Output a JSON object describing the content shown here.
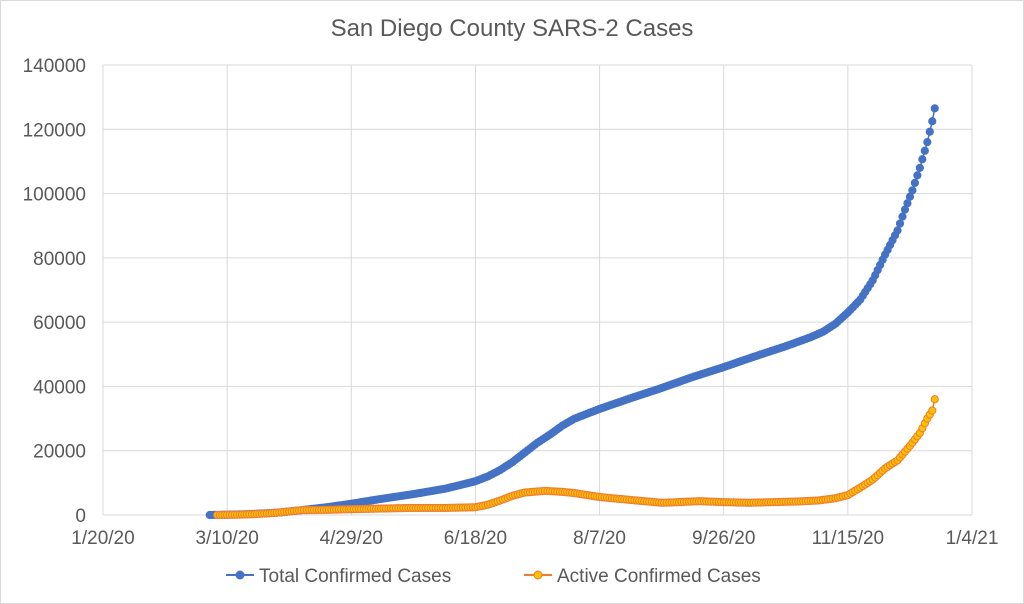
{
  "chart_data": {
    "type": "scatter",
    "title": "San Diego County SARS-2 Cases",
    "xlabel": "",
    "ylabel": "",
    "x_origin_date": "1/20/20",
    "x_units": "days since 1/20/20",
    "xlim": [
      0,
      350
    ],
    "ylim": [
      0,
      140000
    ],
    "x_ticks": [
      {
        "day": 0,
        "label": "1/20/20"
      },
      {
        "day": 50,
        "label": "3/10/20"
      },
      {
        "day": 100,
        "label": "4/29/20"
      },
      {
        "day": 150,
        "label": "6/18/20"
      },
      {
        "day": 200,
        "label": "8/7/20"
      },
      {
        "day": 250,
        "label": "9/26/20"
      },
      {
        "day": 300,
        "label": "11/15/20"
      },
      {
        "day": 350,
        "label": "1/4/21"
      }
    ],
    "y_ticks": [
      "0",
      "20000",
      "40000",
      "60000",
      "80000",
      "100000",
      "120000",
      "140000"
    ],
    "grid": true,
    "legend_position": "bottom",
    "series": [
      {
        "name": "Total Confirmed Cases",
        "color": "#4472C4",
        "marker_fill": "#4472C4",
        "points": [
          [
            43,
            0
          ],
          [
            50,
            100
          ],
          [
            60,
            300
          ],
          [
            70,
            700
          ],
          [
            80,
            1500
          ],
          [
            90,
            2400
          ],
          [
            100,
            3500
          ],
          [
            112,
            5000
          ],
          [
            125,
            6500
          ],
          [
            138,
            8200
          ],
          [
            150,
            10500
          ],
          [
            155,
            12000
          ],
          [
            160,
            14000
          ],
          [
            165,
            16500
          ],
          [
            170,
            19500
          ],
          [
            175,
            22500
          ],
          [
            180,
            25000
          ],
          [
            185,
            27800
          ],
          [
            190,
            30000
          ],
          [
            200,
            33000
          ],
          [
            212,
            36200
          ],
          [
            225,
            39500
          ],
          [
            237,
            42800
          ],
          [
            250,
            46000
          ],
          [
            262,
            49200
          ],
          [
            275,
            52500
          ],
          [
            285,
            55300
          ],
          [
            290,
            57000
          ],
          [
            295,
            59500
          ],
          [
            300,
            63000
          ],
          [
            305,
            67000
          ],
          [
            310,
            73000
          ],
          [
            315,
            81000
          ],
          [
            320,
            88500
          ],
          [
            323,
            95000
          ],
          [
            326,
            101000
          ],
          [
            329,
            108000
          ],
          [
            332,
            116000
          ],
          [
            334,
            122500
          ],
          [
            335,
            126500
          ]
        ]
      },
      {
        "name": "Active Confirmed Cases",
        "color": "#ED7D31",
        "marker_fill": "#FFC000",
        "points": [
          [
            46,
            0
          ],
          [
            55,
            100
          ],
          [
            62,
            300
          ],
          [
            70,
            700
          ],
          [
            80,
            1500
          ],
          [
            90,
            1600
          ],
          [
            100,
            1800
          ],
          [
            112,
            2000
          ],
          [
            125,
            2200
          ],
          [
            138,
            2200
          ],
          [
            150,
            2400
          ],
          [
            155,
            3200
          ],
          [
            160,
            4500
          ],
          [
            165,
            6000
          ],
          [
            170,
            7000
          ],
          [
            178,
            7500
          ],
          [
            185,
            7200
          ],
          [
            190,
            6800
          ],
          [
            200,
            5600
          ],
          [
            208,
            5000
          ],
          [
            215,
            4500
          ],
          [
            225,
            3800
          ],
          [
            232,
            4000
          ],
          [
            240,
            4300
          ],
          [
            250,
            4000
          ],
          [
            260,
            3800
          ],
          [
            270,
            4000
          ],
          [
            280,
            4200
          ],
          [
            288,
            4500
          ],
          [
            295,
            5200
          ],
          [
            300,
            6200
          ],
          [
            305,
            8500
          ],
          [
            310,
            11000
          ],
          [
            315,
            14500
          ],
          [
            320,
            17000
          ],
          [
            325,
            21500
          ],
          [
            329,
            25500
          ],
          [
            332,
            30000
          ],
          [
            334,
            32500
          ],
          [
            335,
            36000
          ]
        ]
      }
    ]
  }
}
